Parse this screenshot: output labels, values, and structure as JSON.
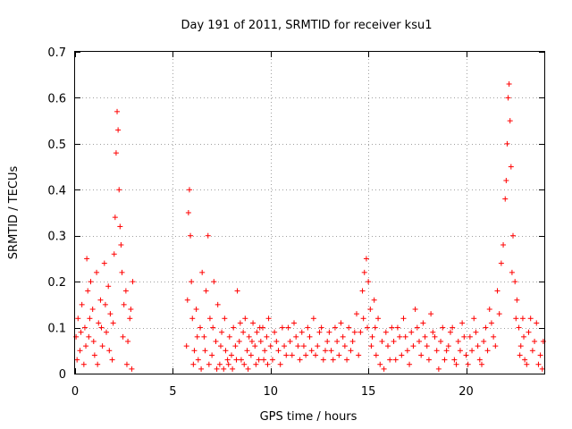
{
  "chart_data": {
    "type": "scatter",
    "title": "Day 191 of 2011, SRMTID for receiver ksu1",
    "xlabel": "GPS time / hours",
    "ylabel": "SRMTID / TECUs",
    "xlim": [
      0,
      24
    ],
    "ylim": [
      0,
      0.7
    ],
    "xticks": [
      0,
      5,
      10,
      15,
      20
    ],
    "yticks": [
      0,
      0.1,
      0.2,
      0.3,
      0.4,
      0.5,
      0.6,
      0.7
    ],
    "xtick_labels": [
      "0",
      "5",
      "10",
      "15",
      "20"
    ],
    "ytick_labels": [
      "0",
      "0.1",
      "0.2",
      "0.3",
      "0.4",
      "0.5",
      "0.6",
      "0.7"
    ],
    "grid": true,
    "marker": "plus",
    "color": "#ff0000",
    "series": [
      {
        "name": "ksu1",
        "points": [
          [
            0.05,
            0.08
          ],
          [
            0.15,
            0.12
          ],
          [
            0.25,
            0.05
          ],
          [
            0.35,
            0.15
          ],
          [
            0.45,
            0.02
          ],
          [
            0.5,
            0.1
          ],
          [
            0.6,
            0.25
          ],
          [
            0.65,
            0.18
          ],
          [
            0.7,
            0.08
          ],
          [
            0.8,
            0.2
          ],
          [
            0.9,
            0.14
          ],
          [
            1.0,
            0.04
          ],
          [
            1.1,
            0.22
          ],
          [
            1.2,
            0.11
          ],
          [
            1.3,
            0.16
          ],
          [
            1.4,
            0.06
          ],
          [
            1.5,
            0.24
          ],
          [
            1.6,
            0.09
          ],
          [
            1.7,
            0.19
          ],
          [
            1.8,
            0.13
          ],
          [
            1.9,
            0.03
          ],
          [
            2.0,
            0.26
          ],
          [
            2.05,
            0.34
          ],
          [
            2.1,
            0.48
          ],
          [
            2.15,
            0.57
          ],
          [
            2.2,
            0.53
          ],
          [
            2.25,
            0.4
          ],
          [
            2.3,
            0.32
          ],
          [
            2.35,
            0.28
          ],
          [
            2.4,
            0.22
          ],
          [
            2.5,
            0.15
          ],
          [
            2.6,
            0.18
          ],
          [
            2.7,
            0.07
          ],
          [
            2.8,
            0.12
          ],
          [
            2.9,
            0.01
          ],
          [
            2.95,
            0.2
          ],
          [
            0.1,
            0.03
          ],
          [
            0.3,
            0.09
          ],
          [
            0.55,
            0.06
          ],
          [
            0.75,
            0.12
          ],
          [
            0.95,
            0.07
          ],
          [
            1.15,
            0.02
          ],
          [
            1.35,
            0.1
          ],
          [
            1.55,
            0.15
          ],
          [
            1.75,
            0.05
          ],
          [
            1.95,
            0.11
          ],
          [
            2.45,
            0.08
          ],
          [
            2.65,
            0.02
          ],
          [
            2.85,
            0.14
          ],
          [
            5.7,
            0.06
          ],
          [
            5.75,
            0.16
          ],
          [
            5.8,
            0.35
          ],
          [
            5.85,
            0.4
          ],
          [
            5.9,
            0.3
          ],
          [
            5.95,
            0.2
          ],
          [
            6.0,
            0.12
          ],
          [
            6.1,
            0.05
          ],
          [
            6.2,
            0.14
          ],
          [
            6.3,
            0.03
          ],
          [
            6.4,
            0.1
          ],
          [
            6.5,
            0.22
          ],
          [
            6.6,
            0.08
          ],
          [
            6.7,
            0.18
          ],
          [
            6.8,
            0.3
          ],
          [
            6.9,
            0.12
          ],
          [
            7.0,
            0.04
          ],
          [
            7.1,
            0.2
          ],
          [
            7.2,
            0.07
          ],
          [
            7.3,
            0.15
          ],
          [
            7.4,
            0.02
          ],
          [
            7.5,
            0.09
          ],
          [
            7.6,
            0.01
          ],
          [
            7.7,
            0.05
          ],
          [
            7.8,
            0.03
          ],
          [
            7.9,
            0.08
          ],
          [
            8.0,
            0.04
          ],
          [
            8.1,
            0.1
          ],
          [
            8.2,
            0.06
          ],
          [
            8.3,
            0.18
          ],
          [
            8.4,
            0.07
          ],
          [
            8.5,
            0.03
          ],
          [
            8.6,
            0.09
          ],
          [
            8.7,
            0.12
          ],
          [
            8.8,
            0.05
          ],
          [
            8.9,
            0.08
          ],
          [
            9.0,
            0.04
          ],
          [
            9.1,
            0.11
          ],
          [
            9.2,
            0.06
          ],
          [
            9.3,
            0.09
          ],
          [
            9.4,
            0.03
          ],
          [
            9.5,
            0.07
          ],
          [
            9.6,
            0.1
          ],
          [
            9.7,
            0.05
          ],
          [
            9.8,
            0.08
          ],
          [
            9.9,
            0.12
          ],
          [
            6.05,
            0.02
          ],
          [
            6.25,
            0.08
          ],
          [
            6.45,
            0.01
          ],
          [
            6.65,
            0.05
          ],
          [
            6.85,
            0.02
          ],
          [
            7.05,
            0.1
          ],
          [
            7.25,
            0.01
          ],
          [
            7.45,
            0.06
          ],
          [
            7.65,
            0.12
          ],
          [
            7.85,
            0.02
          ],
          [
            8.05,
            0.01
          ],
          [
            8.25,
            0.03
          ],
          [
            8.45,
            0.11
          ],
          [
            8.65,
            0.02
          ],
          [
            8.85,
            0.01
          ],
          [
            9.05,
            0.07
          ],
          [
            9.25,
            0.02
          ],
          [
            9.45,
            0.1
          ],
          [
            9.65,
            0.03
          ],
          [
            9.85,
            0.02
          ],
          [
            10.0,
            0.06
          ],
          [
            10.2,
            0.09
          ],
          [
            10.4,
            0.05
          ],
          [
            10.6,
            0.1
          ],
          [
            10.8,
            0.04
          ],
          [
            11.0,
            0.07
          ],
          [
            11.2,
            0.11
          ],
          [
            11.4,
            0.06
          ],
          [
            11.6,
            0.09
          ],
          [
            11.8,
            0.04
          ],
          [
            12.0,
            0.08
          ],
          [
            12.2,
            0.12
          ],
          [
            12.4,
            0.06
          ],
          [
            12.6,
            0.1
          ],
          [
            12.8,
            0.05
          ],
          [
            13.0,
            0.09
          ],
          [
            13.2,
            0.03
          ],
          [
            13.4,
            0.07
          ],
          [
            13.6,
            0.11
          ],
          [
            13.8,
            0.06
          ],
          [
            14.0,
            0.1
          ],
          [
            14.2,
            0.07
          ],
          [
            14.4,
            0.13
          ],
          [
            14.6,
            0.09
          ],
          [
            14.7,
            0.18
          ],
          [
            14.8,
            0.22
          ],
          [
            14.9,
            0.25
          ],
          [
            15.0,
            0.2
          ],
          [
            15.1,
            0.14
          ],
          [
            15.2,
            0.08
          ],
          [
            15.3,
            0.16
          ],
          [
            15.4,
            0.04
          ],
          [
            15.5,
            0.12
          ],
          [
            15.6,
            0.02
          ],
          [
            15.7,
            0.07
          ],
          [
            15.8,
            0.01
          ],
          [
            15.9,
            0.09
          ],
          [
            10.1,
            0.03
          ],
          [
            10.3,
            0.07
          ],
          [
            10.5,
            0.02
          ],
          [
            10.7,
            0.06
          ],
          [
            10.9,
            0.1
          ],
          [
            11.1,
            0.04
          ],
          [
            11.3,
            0.08
          ],
          [
            11.5,
            0.03
          ],
          [
            11.7,
            0.06
          ],
          [
            11.9,
            0.1
          ],
          [
            12.1,
            0.05
          ],
          [
            12.3,
            0.04
          ],
          [
            12.5,
            0.09
          ],
          [
            12.7,
            0.03
          ],
          [
            12.9,
            0.07
          ],
          [
            13.1,
            0.05
          ],
          [
            13.3,
            0.1
          ],
          [
            13.5,
            0.04
          ],
          [
            13.7,
            0.08
          ],
          [
            13.9,
            0.03
          ],
          [
            14.1,
            0.05
          ],
          [
            14.3,
            0.09
          ],
          [
            14.5,
            0.04
          ],
          [
            14.75,
            0.12
          ],
          [
            14.95,
            0.1
          ],
          [
            15.15,
            0.06
          ],
          [
            15.35,
            0.1
          ],
          [
            16.0,
            0.06
          ],
          [
            16.2,
            0.1
          ],
          [
            16.4,
            0.03
          ],
          [
            16.6,
            0.08
          ],
          [
            16.8,
            0.12
          ],
          [
            17.0,
            0.05
          ],
          [
            17.2,
            0.09
          ],
          [
            17.4,
            0.14
          ],
          [
            17.6,
            0.07
          ],
          [
            17.8,
            0.11
          ],
          [
            18.0,
            0.06
          ],
          [
            18.2,
            0.13
          ],
          [
            18.4,
            0.08
          ],
          [
            18.6,
            0.01
          ],
          [
            18.8,
            0.1
          ],
          [
            19.0,
            0.05
          ],
          [
            19.2,
            0.09
          ],
          [
            19.4,
            0.03
          ],
          [
            19.6,
            0.07
          ],
          [
            19.8,
            0.11
          ],
          [
            20.0,
            0.04
          ],
          [
            20.2,
            0.08
          ],
          [
            20.4,
            0.12
          ],
          [
            20.6,
            0.06
          ],
          [
            20.8,
            0.02
          ],
          [
            21.0,
            0.1
          ],
          [
            21.2,
            0.14
          ],
          [
            21.4,
            0.08
          ],
          [
            21.6,
            0.18
          ],
          [
            21.8,
            0.24
          ],
          [
            21.9,
            0.28
          ],
          [
            22.0,
            0.38
          ],
          [
            22.05,
            0.42
          ],
          [
            22.1,
            0.5
          ],
          [
            22.15,
            0.6
          ],
          [
            22.2,
            0.63
          ],
          [
            22.25,
            0.55
          ],
          [
            22.3,
            0.45
          ],
          [
            22.4,
            0.3
          ],
          [
            22.5,
            0.2
          ],
          [
            22.6,
            0.16
          ],
          [
            22.7,
            0.1
          ],
          [
            22.8,
            0.06
          ],
          [
            22.9,
            0.12
          ],
          [
            23.0,
            0.03
          ],
          [
            23.2,
            0.09
          ],
          [
            23.4,
            0.05
          ],
          [
            23.6,
            0.11
          ],
          [
            23.8,
            0.04
          ],
          [
            23.95,
            0.07
          ],
          [
            16.1,
            0.03
          ],
          [
            16.3,
            0.07
          ],
          [
            16.5,
            0.1
          ],
          [
            16.7,
            0.04
          ],
          [
            16.9,
            0.08
          ],
          [
            17.1,
            0.02
          ],
          [
            17.3,
            0.06
          ],
          [
            17.5,
            0.1
          ],
          [
            17.7,
            0.04
          ],
          [
            17.9,
            0.08
          ],
          [
            18.1,
            0.03
          ],
          [
            18.3,
            0.09
          ],
          [
            18.5,
            0.05
          ],
          [
            18.7,
            0.07
          ],
          [
            18.9,
            0.03
          ],
          [
            19.1,
            0.06
          ],
          [
            19.3,
            0.1
          ],
          [
            19.5,
            0.02
          ],
          [
            19.7,
            0.05
          ],
          [
            19.9,
            0.08
          ],
          [
            20.1,
            0.02
          ],
          [
            20.3,
            0.05
          ],
          [
            20.5,
            0.09
          ],
          [
            20.7,
            0.03
          ],
          [
            20.9,
            0.07
          ],
          [
            21.1,
            0.05
          ],
          [
            21.3,
            0.11
          ],
          [
            21.5,
            0.06
          ],
          [
            21.7,
            0.13
          ],
          [
            22.35,
            0.22
          ],
          [
            22.55,
            0.12
          ],
          [
            22.75,
            0.04
          ],
          [
            22.95,
            0.08
          ],
          [
            23.1,
            0.02
          ],
          [
            23.3,
            0.12
          ],
          [
            23.5,
            0.07
          ],
          [
            23.7,
            0.02
          ],
          [
            23.9,
            0.01
          ]
        ]
      }
    ]
  }
}
